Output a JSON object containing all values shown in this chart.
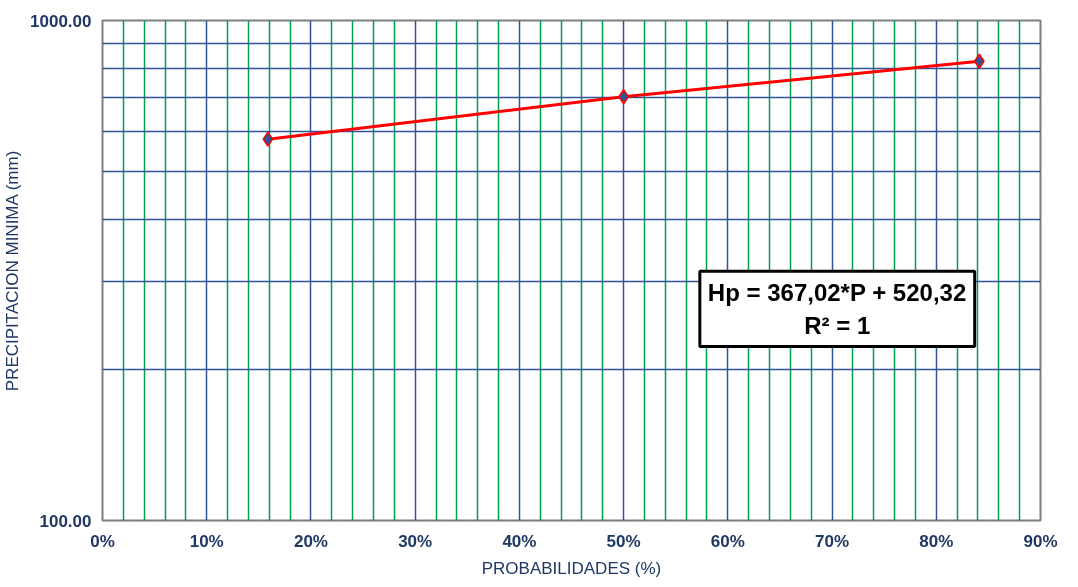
{
  "chart_data": {
    "type": "line",
    "xlabel": "PROBABILIDADES (%)",
    "ylabel": "PRECIPITACION MINIMA (mm)",
    "x": [
      15.87,
      50,
      84.13
    ],
    "series": [
      {
        "color": "#ff0000",
        "values": [
          579,
          704,
          829
        ]
      }
    ],
    "xlim": [
      0,
      90
    ],
    "xticks": [
      {
        "value": 0,
        "label": "0%"
      },
      {
        "value": 2,
        "label": null
      },
      {
        "value": 4,
        "label": null
      },
      {
        "value": 6,
        "label": null
      },
      {
        "value": 8,
        "label": null
      },
      {
        "value": 10,
        "label": "10%"
      },
      {
        "value": 12,
        "label": null
      },
      {
        "value": 14,
        "label": null
      },
      {
        "value": 16,
        "label": null
      },
      {
        "value": 18,
        "label": null
      },
      {
        "value": 20,
        "label": "20%"
      },
      {
        "value": 22,
        "label": null
      },
      {
        "value": 24,
        "label": null
      },
      {
        "value": 26,
        "label": null
      },
      {
        "value": 28,
        "label": null
      },
      {
        "value": 30,
        "label": "30%"
      },
      {
        "value": 32,
        "label": null
      },
      {
        "value": 34,
        "label": null
      },
      {
        "value": 36,
        "label": null
      },
      {
        "value": 38,
        "label": null
      },
      {
        "value": 40,
        "label": "40%"
      },
      {
        "value": 42,
        "label": null
      },
      {
        "value": 44,
        "label": null
      },
      {
        "value": 46,
        "label": null
      },
      {
        "value": 48,
        "label": null
      },
      {
        "value": 50,
        "label": "50%"
      },
      {
        "value": 52,
        "label": null
      },
      {
        "value": 54,
        "label": null
      },
      {
        "value": 56,
        "label": null
      },
      {
        "value": 58,
        "label": null
      },
      {
        "value": 60,
        "label": "60%"
      },
      {
        "value": 62,
        "label": null
      },
      {
        "value": 64,
        "label": null
      },
      {
        "value": 66,
        "label": null
      },
      {
        "value": 68,
        "label": null
      },
      {
        "value": 70,
        "label": "70%"
      },
      {
        "value": 72,
        "label": null
      },
      {
        "value": 74,
        "label": null
      },
      {
        "value": 76,
        "label": null
      },
      {
        "value": 78,
        "label": null
      },
      {
        "value": 80,
        "label": "80%"
      },
      {
        "value": 82,
        "label": null
      },
      {
        "value": 84,
        "label": null
      },
      {
        "value": 86,
        "label": null
      },
      {
        "value": 88,
        "label": null
      },
      {
        "value": 90,
        "label": "90%"
      }
    ],
    "ylim": [
      100,
      1000
    ],
    "yticks": [
      {
        "value": 100,
        "label": "100.00"
      },
      {
        "value": 200,
        "label": null
      },
      {
        "value": 300,
        "label": null
      },
      {
        "value": 400,
        "label": null
      },
      {
        "value": 500,
        "label": null
      },
      {
        "value": 600,
        "label": null
      },
      {
        "value": 700,
        "label": null
      },
      {
        "value": 800,
        "label": null
      },
      {
        "value": 900,
        "label": null
      },
      {
        "value": 1000,
        "label": "1000.00"
      }
    ],
    "log": "y",
    "grid": true,
    "marker": "diamond",
    "line_style": "solid",
    "annotations": [
      "Hp = 367,02*P + 520,32",
      "R² = 1"
    ]
  }
}
